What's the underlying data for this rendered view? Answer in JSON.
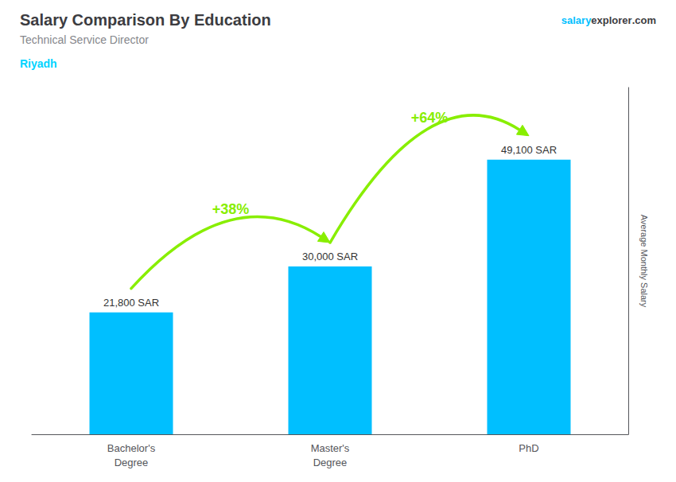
{
  "chart_data": {
    "type": "bar",
    "title": "Salary Comparison By Education",
    "subtitle": "Technical Service Director",
    "annotations": [
      {
        "text": "Riyadh",
        "color": "#00D4FF"
      },
      {
        "text": "+38%",
        "from": "Bachelor's\nDegree",
        "to": "Master's\nDegree",
        "color": "#88EE00"
      },
      {
        "text": "+64%",
        "from": "Master's\nDegree",
        "to": "PhD",
        "color": "#88EE00"
      }
    ],
    "watermark": [
      {
        "text": "salary",
        "color": "#00BFFF"
      },
      {
        "text": "explorer"
      },
      {
        "text": ".com"
      }
    ],
    "ylabel": "Average Monthly Salary",
    "categories": [
      "Bachelor's\nDegree",
      "Master's\nDegree",
      "PhD"
    ],
    "values": [
      21800,
      30000,
      49100
    ],
    "value_labels": [
      "21,800 SAR",
      "30,000 SAR",
      "49,100 SAR"
    ],
    "data_labels": true,
    "color": "#00BFFF",
    "ylim": [
      0,
      62000
    ],
    "grid": false,
    "tick_labels": "x"
  }
}
